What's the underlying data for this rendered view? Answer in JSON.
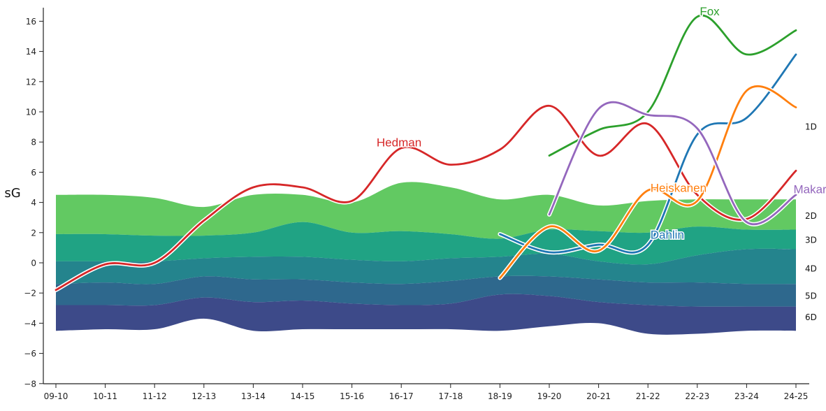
{
  "chart_data": {
    "type": "area",
    "ylabel": "sG",
    "ylim": [
      -8,
      17
    ],
    "yticks": [
      -8,
      -6,
      -4,
      -2,
      0,
      2,
      4,
      6,
      8,
      10,
      12,
      14,
      16
    ],
    "categories": [
      "09-10",
      "10-11",
      "11-12",
      "12-13",
      "13-14",
      "14-15",
      "15-16",
      "16-17",
      "17-18",
      "18-19",
      "19-20",
      "20-21",
      "21-22",
      "22-23",
      "23-24",
      "24-25"
    ],
    "bands": [
      {
        "name": "1D",
        "color": "#62c962",
        "upper": [
          4.5,
          4.5,
          4.3,
          3.7,
          4.5,
          4.5,
          4.0,
          5.3,
          5.0,
          4.2,
          4.5,
          3.8,
          4.1,
          4.2,
          4.2,
          4.2
        ],
        "lower": [
          1.9,
          1.9,
          1.8,
          1.8,
          2.0,
          2.7,
          2.0,
          2.1,
          1.9,
          1.6,
          2.2,
          2.1,
          2.0,
          2.4,
          2.2,
          2.2
        ]
      },
      {
        "name": "2D",
        "color": "#20a384",
        "upper": [
          1.9,
          1.9,
          1.8,
          1.8,
          2.0,
          2.7,
          2.0,
          2.1,
          1.9,
          1.6,
          2.2,
          2.1,
          2.0,
          2.4,
          2.2,
          2.2
        ],
        "lower": [
          0.1,
          0.1,
          0.1,
          0.3,
          0.4,
          0.4,
          0.2,
          0.1,
          0.3,
          0.4,
          0.6,
          0.1,
          -0.1,
          0.5,
          0.9,
          0.9
        ]
      },
      {
        "name": "3D",
        "color": "#24848d",
        "upper": [
          0.1,
          0.1,
          0.1,
          0.3,
          0.4,
          0.4,
          0.2,
          0.1,
          0.3,
          0.4,
          0.6,
          0.1,
          -0.1,
          0.5,
          0.9,
          0.9
        ],
        "lower": [
          -1.4,
          -1.3,
          -1.4,
          -0.9,
          -1.1,
          -1.1,
          -1.3,
          -1.4,
          -1.2,
          -0.9,
          -0.9,
          -1.1,
          -1.3,
          -1.3,
          -1.4,
          -1.4
        ]
      },
      {
        "name": "4D",
        "color": "#2e688d",
        "upper": [
          -1.4,
          -1.3,
          -1.4,
          -0.9,
          -1.1,
          -1.1,
          -1.3,
          -1.4,
          -1.2,
          -0.9,
          -0.9,
          -1.1,
          -1.3,
          -1.3,
          -1.4,
          -1.4
        ],
        "lower": [
          -2.8,
          -2.8,
          -2.8,
          -2.3,
          -2.6,
          -2.5,
          -2.7,
          -2.8,
          -2.7,
          -2.1,
          -2.2,
          -2.6,
          -2.8,
          -2.9,
          -2.9,
          -2.9
        ]
      },
      {
        "name": "5D",
        "color": "#3d4a89",
        "upper": [
          -2.8,
          -2.8,
          -2.8,
          -2.3,
          -2.6,
          -2.5,
          -2.7,
          -2.8,
          -2.7,
          -2.1,
          -2.2,
          -2.6,
          -2.8,
          -2.9,
          -2.9,
          -2.9
        ],
        "lower": [
          -4.5,
          -4.4,
          -4.4,
          -3.7,
          -4.5,
          -4.4,
          -4.4,
          -4.4,
          -4.4,
          -4.5,
          -4.2,
          -4.0,
          -4.7,
          -4.7,
          -4.5,
          -4.5
        ]
      }
    ],
    "band_labels": [
      {
        "text": "1D",
        "y": 9.0
      },
      {
        "text": "2D",
        "y": 3.1
      },
      {
        "text": "3D",
        "y": 1.5
      },
      {
        "text": "4D",
        "y": -0.4
      },
      {
        "text": "5D",
        "y": -2.2
      },
      {
        "text": "6D",
        "y": -3.6
      }
    ],
    "series": [
      {
        "name": "Hedman",
        "color": "#d62728",
        "halo": true,
        "x": [
          "09-10",
          "10-11",
          "11-12",
          "12-13",
          "13-14",
          "14-15",
          "15-16",
          "16-17",
          "17-18",
          "18-19",
          "19-20",
          "20-21",
          "21-22",
          "22-23",
          "23-24",
          "24-25"
        ],
        "values": [
          -1.8,
          -0.1,
          0.0,
          2.8,
          5.0,
          5.0,
          4.1,
          7.6,
          6.5,
          7.5,
          10.4,
          7.1,
          9.2,
          4.5,
          2.9,
          6.1
        ]
      },
      {
        "name": "Fox",
        "color": "#2ca02c",
        "halo": false,
        "x": [
          "19-20",
          "20-21",
          "21-22",
          "22-23",
          "23-24",
          "24-25"
        ],
        "values": [
          7.1,
          8.8,
          10.0,
          16.3,
          13.8,
          15.4
        ]
      },
      {
        "name": "Dahlin",
        "color": "#1f77b4",
        "halo": true,
        "x": [
          "18-19",
          "19-20",
          "20-21",
          "21-22",
          "22-23",
          "23-24",
          "24-25"
        ],
        "values": [
          1.9,
          0.7,
          1.2,
          1.2,
          8.5,
          9.6,
          13.8
        ]
      },
      {
        "name": "Heiskanen",
        "color": "#ff7f0e",
        "halo": true,
        "x": [
          "18-19",
          "19-20",
          "20-21",
          "21-22",
          "22-23",
          "23-24",
          "24-25"
        ],
        "values": [
          -1.0,
          2.4,
          0.8,
          4.8,
          4.1,
          11.4,
          10.3
        ]
      },
      {
        "name": "Makar",
        "color": "#9467bd",
        "halo": true,
        "x": [
          "19-20",
          "20-21",
          "21-22",
          "22-23",
          "23-24",
          "24-25"
        ],
        "values": [
          3.2,
          10.2,
          9.8,
          8.9,
          2.7,
          4.5
        ]
      }
    ],
    "series_labels": [
      {
        "text": "Hedman",
        "x": "16-17",
        "dx": -0.5,
        "y": 7.7
      },
      {
        "text": "Fox",
        "x": "22-23",
        "dx": 0.05,
        "y": 16.4
      },
      {
        "text": "Dahlin",
        "x": "21-22",
        "dx": 0.05,
        "y": 1.6
      },
      {
        "text": "Heiskanen",
        "x": "21-22",
        "dx": 0.05,
        "y": 4.7
      },
      {
        "text": "Makar",
        "x": "24-25",
        "dx": -0.05,
        "y": 4.6
      }
    ],
    "grid": false,
    "legend": "none"
  }
}
